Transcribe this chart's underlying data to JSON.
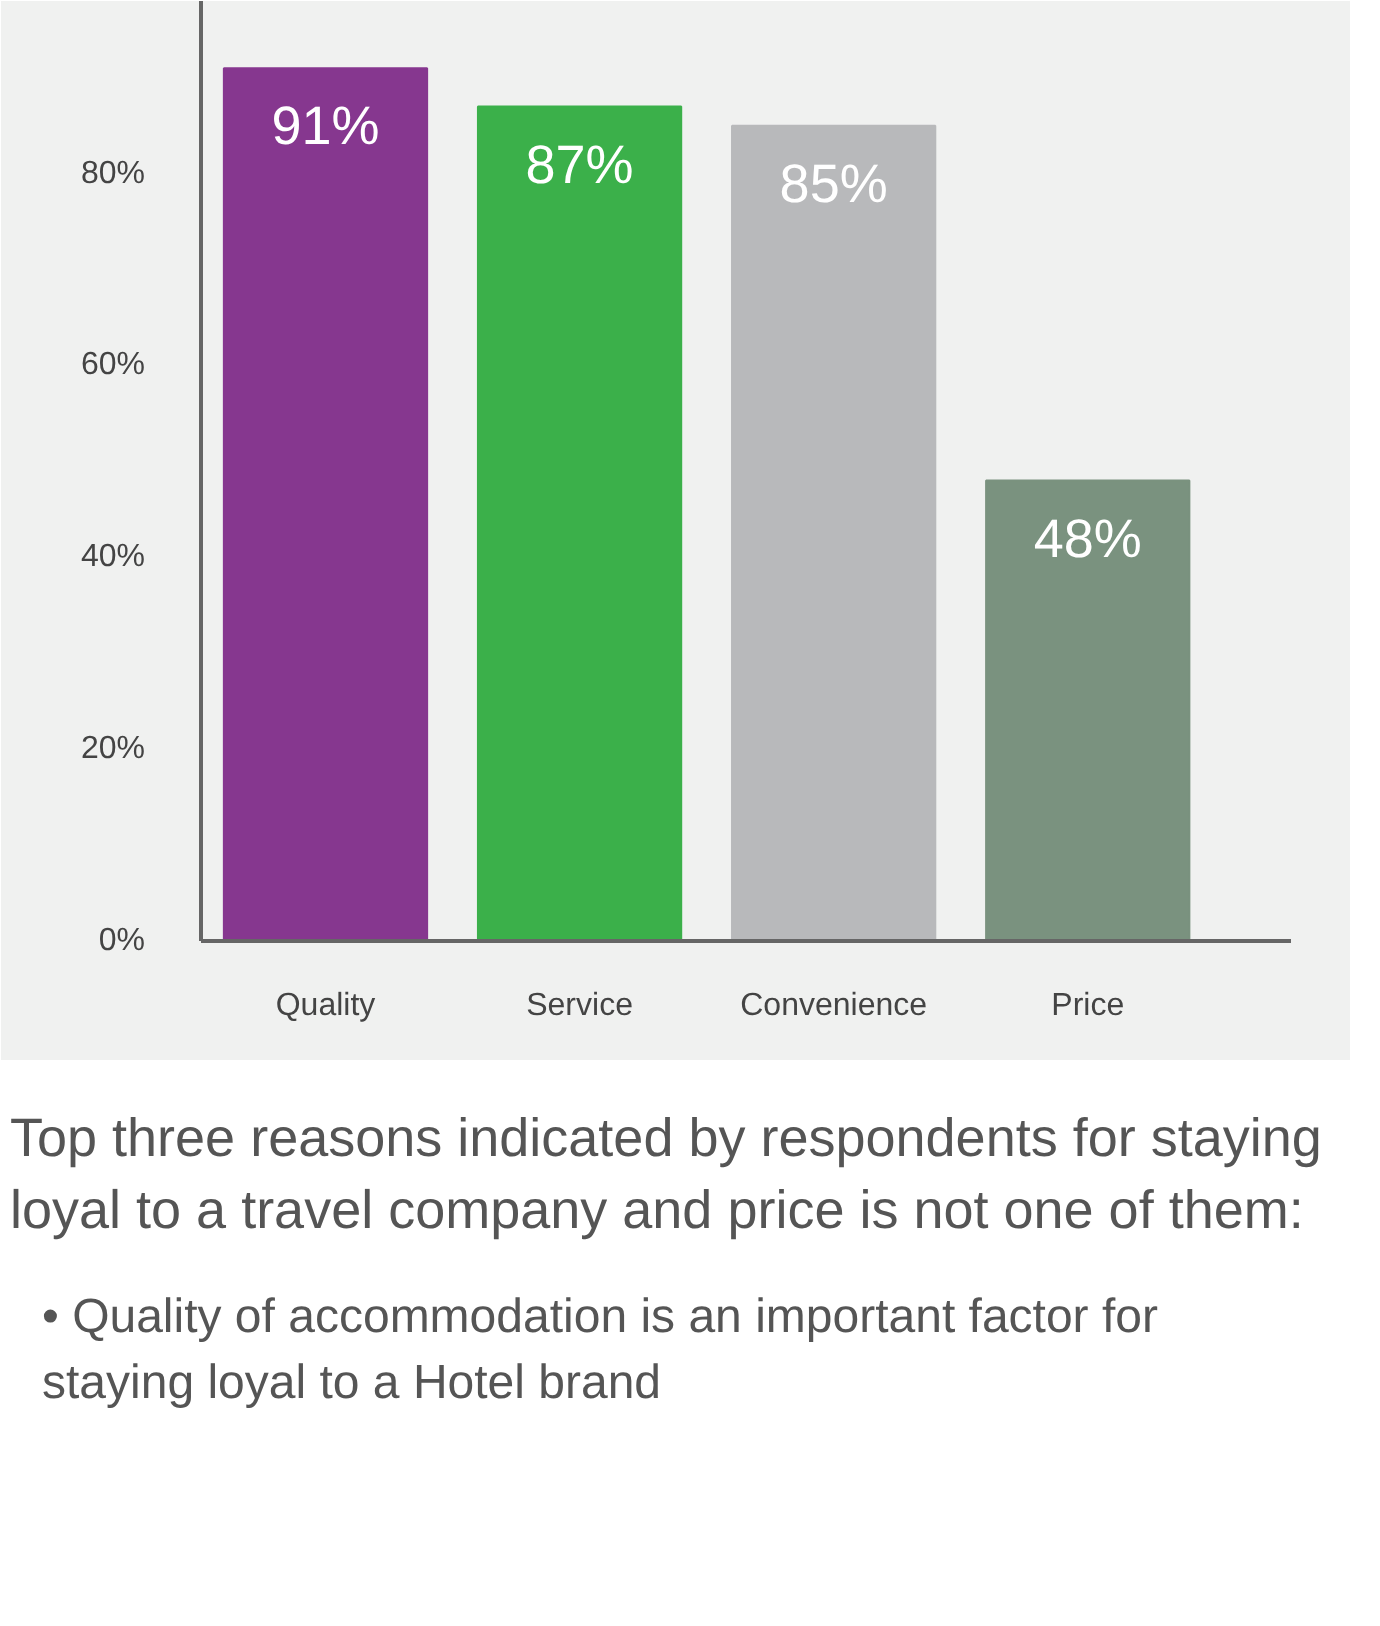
{
  "chart_data": {
    "type": "bar",
    "categories": [
      "Quality",
      "Service",
      "Convenience",
      "Price"
    ],
    "values": [
      91,
      87,
      85,
      48
    ],
    "colors": [
      "#86378f",
      "#3bb04a",
      "#b8b9bb",
      "#7a927f"
    ],
    "value_labels": [
      "91%",
      "87%",
      "85%",
      "48%"
    ],
    "ylim": [
      0,
      98
    ],
    "yticks": [
      {
        "value": 0,
        "label": "0%"
      },
      {
        "value": 20,
        "label": "20%"
      },
      {
        "value": 40,
        "label": "40%"
      },
      {
        "value": 60,
        "label": "60%"
      },
      {
        "value": 80,
        "label": "80%"
      }
    ],
    "grid": false,
    "annotations": [
      "Top three reasons indicated by respondents for staying loyal to a travel company and price is not one of them:",
      "• Quality of accommodation is an important factor for staying loyal to a Hotel brand"
    ]
  }
}
